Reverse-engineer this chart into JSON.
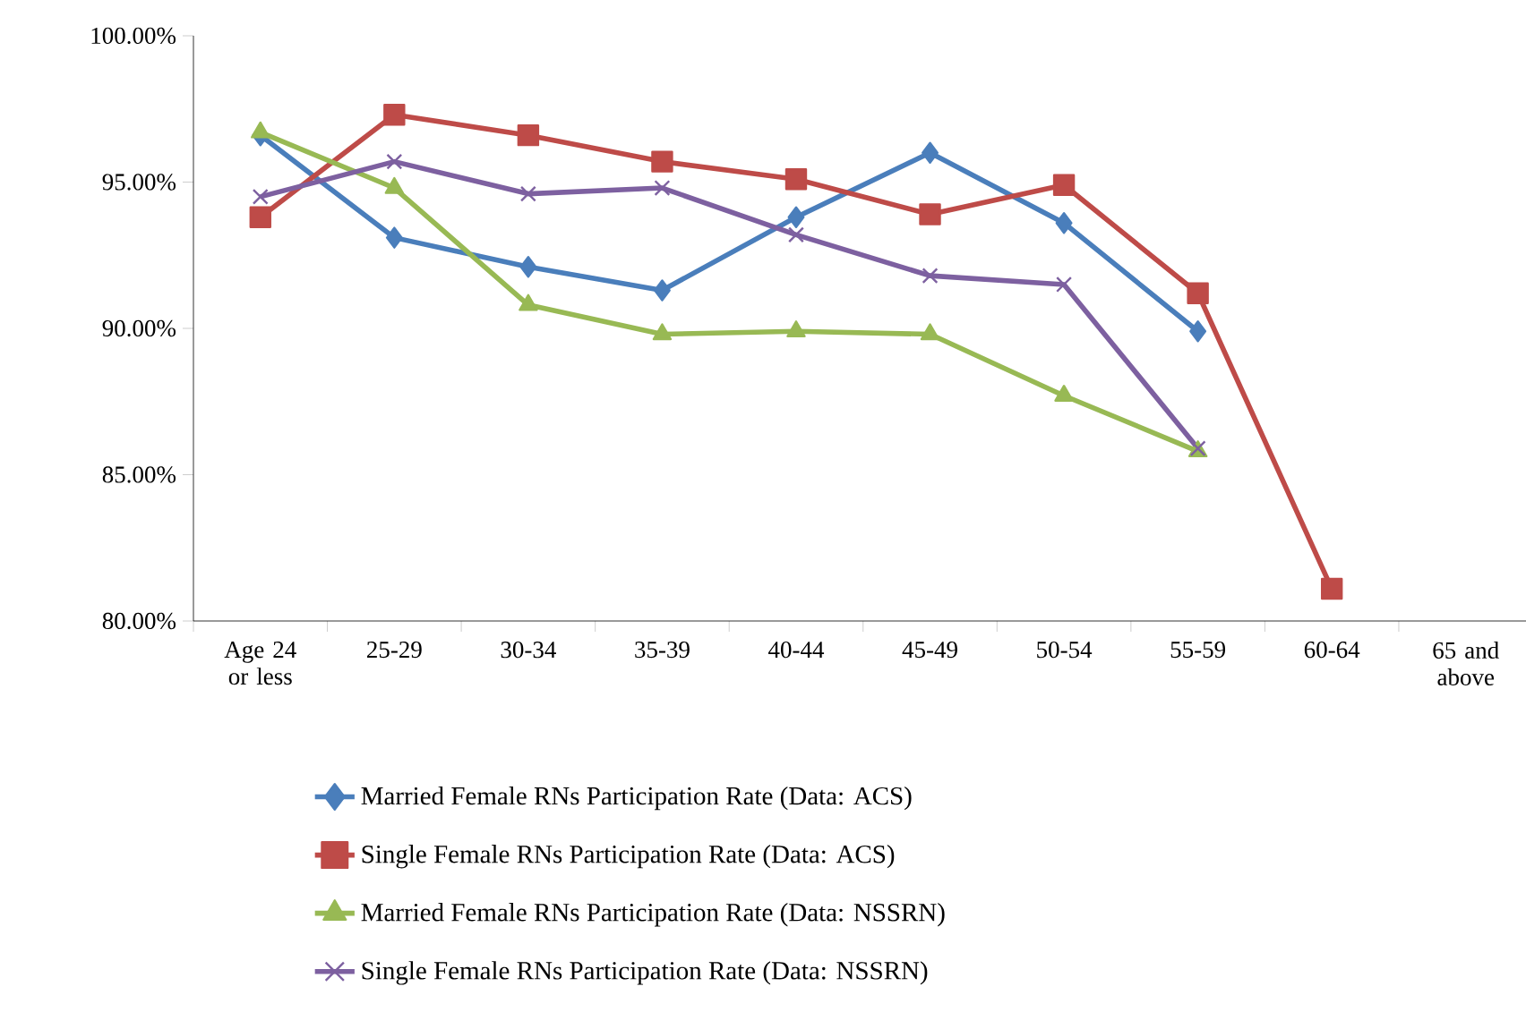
{
  "chart_data": {
    "type": "line",
    "categories": [
      "Age 24 or less",
      "25-29",
      "30-34",
      "35-39",
      "40-44",
      "45-49",
      "50-54",
      "55-59",
      "60-64",
      "65 and above"
    ],
    "series": [
      {
        "name": "Married Female RNs Participation Rate (Data: ACS)",
        "color": "#4a7ebb",
        "marker": "diamond",
        "values": [
          96.6,
          93.1,
          92.1,
          91.3,
          93.8,
          96.0,
          93.6,
          89.9,
          null,
          null
        ]
      },
      {
        "name": "Single Female RNs Participation Rate (Data: ACS)",
        "color": "#be4b48",
        "marker": "square",
        "values": [
          93.8,
          97.3,
          96.6,
          95.7,
          95.1,
          93.9,
          94.9,
          91.2,
          81.1,
          null
        ]
      },
      {
        "name": "Married Female RNs Participation Rate (Data: NSSRN)",
        "color": "#98b954",
        "marker": "triangle",
        "values": [
          96.7,
          94.8,
          90.8,
          89.8,
          89.9,
          89.8,
          87.7,
          85.8,
          null,
          null
        ]
      },
      {
        "name": "Single Female RNs Participation Rate (Data: NSSRN)",
        "color": "#7d60a0",
        "marker": "cross",
        "values": [
          94.5,
          95.7,
          94.6,
          94.8,
          93.2,
          91.8,
          91.5,
          85.9,
          null,
          null
        ]
      }
    ],
    "ylim": [
      80,
      100
    ],
    "yticks": [
      {
        "value": 80,
        "label": "80.00%"
      },
      {
        "value": 85,
        "label": "85.00%"
      },
      {
        "value": 90,
        "label": "90.00%"
      },
      {
        "value": 95,
        "label": "95.00%"
      },
      {
        "value": 100,
        "label": "100.00%"
      }
    ],
    "legend": "bottom",
    "grid": false,
    "line_style": "solid"
  }
}
